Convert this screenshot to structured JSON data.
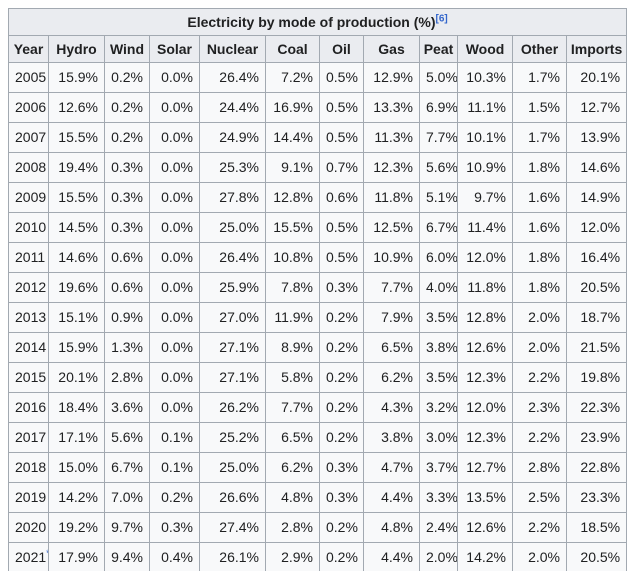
{
  "table": {
    "title": "Electricity by mode of production (%)",
    "title_ref": "[6]",
    "columns": [
      "Year",
      "Hydro",
      "Wind",
      "Solar",
      "Nuclear",
      "Coal",
      "Oil",
      "Gas",
      "Peat",
      "Wood",
      "Other",
      "Imports"
    ],
    "rows": [
      {
        "year": "2005",
        "note": "",
        "values": [
          "15.9%",
          "0.2%",
          "0.0%",
          "26.4%",
          "7.2%",
          "0.5%",
          "12.9%",
          "5.0%",
          "10.3%",
          "1.7%",
          "20.1%"
        ]
      },
      {
        "year": "2006",
        "note": "",
        "values": [
          "12.6%",
          "0.2%",
          "0.0%",
          "24.4%",
          "16.9%",
          "0.5%",
          "13.3%",
          "6.9%",
          "11.1%",
          "1.5%",
          "12.7%"
        ]
      },
      {
        "year": "2007",
        "note": "",
        "values": [
          "15.5%",
          "0.2%",
          "0.0%",
          "24.9%",
          "14.4%",
          "0.5%",
          "11.3%",
          "7.7%",
          "10.1%",
          "1.7%",
          "13.9%"
        ]
      },
      {
        "year": "2008",
        "note": "",
        "values": [
          "19.4%",
          "0.3%",
          "0.0%",
          "25.3%",
          "9.1%",
          "0.7%",
          "12.3%",
          "5.6%",
          "10.9%",
          "1.8%",
          "14.6%"
        ]
      },
      {
        "year": "2009",
        "note": "",
        "values": [
          "15.5%",
          "0.3%",
          "0.0%",
          "27.8%",
          "12.8%",
          "0.6%",
          "11.8%",
          "5.1%",
          "9.7%",
          "1.6%",
          "14.9%"
        ]
      },
      {
        "year": "2010",
        "note": "",
        "values": [
          "14.5%",
          "0.3%",
          "0.0%",
          "25.0%",
          "15.5%",
          "0.5%",
          "12.5%",
          "6.7%",
          "11.4%",
          "1.6%",
          "12.0%"
        ]
      },
      {
        "year": "2011",
        "note": "",
        "values": [
          "14.6%",
          "0.6%",
          "0.0%",
          "26.4%",
          "10.8%",
          "0.5%",
          "10.9%",
          "6.0%",
          "12.0%",
          "1.8%",
          "16.4%"
        ]
      },
      {
        "year": "2012",
        "note": "",
        "values": [
          "19.6%",
          "0.6%",
          "0.0%",
          "25.9%",
          "7.8%",
          "0.3%",
          "7.7%",
          "4.0%",
          "11.8%",
          "1.8%",
          "20.5%"
        ]
      },
      {
        "year": "2013",
        "note": "",
        "values": [
          "15.1%",
          "0.9%",
          "0.0%",
          "27.0%",
          "11.9%",
          "0.2%",
          "7.9%",
          "3.5%",
          "12.8%",
          "2.0%",
          "18.7%"
        ]
      },
      {
        "year": "2014",
        "note": "",
        "values": [
          "15.9%",
          "1.3%",
          "0.0%",
          "27.1%",
          "8.9%",
          "0.2%",
          "6.5%",
          "3.8%",
          "12.6%",
          "2.0%",
          "21.5%"
        ]
      },
      {
        "year": "2015",
        "note": "",
        "values": [
          "20.1%",
          "2.8%",
          "0.0%",
          "27.1%",
          "5.8%",
          "0.2%",
          "6.2%",
          "3.5%",
          "12.3%",
          "2.2%",
          "19.8%"
        ]
      },
      {
        "year": "2016",
        "note": "",
        "values": [
          "18.4%",
          "3.6%",
          "0.0%",
          "26.2%",
          "7.7%",
          "0.2%",
          "4.3%",
          "3.2%",
          "12.0%",
          "2.3%",
          "22.3%"
        ]
      },
      {
        "year": "2017",
        "note": "",
        "values": [
          "17.1%",
          "5.6%",
          "0.1%",
          "25.2%",
          "6.5%",
          "0.2%",
          "3.8%",
          "3.0%",
          "12.3%",
          "2.2%",
          "23.9%"
        ]
      },
      {
        "year": "2018",
        "note": "",
        "values": [
          "15.0%",
          "6.7%",
          "0.1%",
          "25.0%",
          "6.2%",
          "0.3%",
          "4.7%",
          "3.7%",
          "12.7%",
          "2.8%",
          "22.8%"
        ]
      },
      {
        "year": "2019",
        "note": "",
        "values": [
          "14.2%",
          "7.0%",
          "0.2%",
          "26.6%",
          "4.8%",
          "0.3%",
          "4.4%",
          "3.3%",
          "13.5%",
          "2.5%",
          "23.3%"
        ]
      },
      {
        "year": "2020",
        "note": "",
        "values": [
          "19.2%",
          "9.7%",
          "0.3%",
          "27.4%",
          "2.8%",
          "0.2%",
          "4.8%",
          "2.4%",
          "12.6%",
          "2.2%",
          "18.5%"
        ]
      },
      {
        "year": "2021",
        "note": "*",
        "values": [
          "17.9%",
          "9.4%",
          "0.4%",
          "26.1%",
          "2.9%",
          "0.2%",
          "4.4%",
          "2.0%",
          "14.2%",
          "2.0%",
          "20.5%"
        ]
      }
    ]
  },
  "colors": {
    "border": "#a2a9b1",
    "header_bg": "#eaecf0",
    "row_bg": "#f8f9fa",
    "text": "#202122",
    "link": "#3366cc"
  }
}
